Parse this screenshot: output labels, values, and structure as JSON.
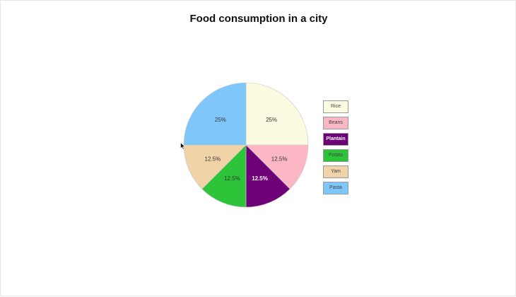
{
  "chart_data": {
    "type": "pie",
    "title": "Food consumption in a city",
    "categories": [
      "Rice",
      "Beans",
      "Plantain",
      "Potato",
      "Yam",
      "Pasta"
    ],
    "values": [
      25,
      12.5,
      12.5,
      12.5,
      12.5,
      25
    ],
    "labels": [
      "25%",
      "12.5%",
      "12.5%",
      "12.5%",
      "12.5%",
      "25%"
    ],
    "colors": [
      "#fbfbe1",
      "#fbb8c4",
      "#6e0177",
      "#2ec43a",
      "#f0d4a8",
      "#7fc6fb"
    ],
    "label_colors": [
      "#333333",
      "#333333",
      "#ffffff",
      "#333333",
      "#333333",
      "#333333"
    ],
    "legend_text_colors": [
      "#444444",
      "#444444",
      "#ffffff",
      "#444444",
      "#444444",
      "#444444"
    ],
    "legend_position": "right"
  }
}
